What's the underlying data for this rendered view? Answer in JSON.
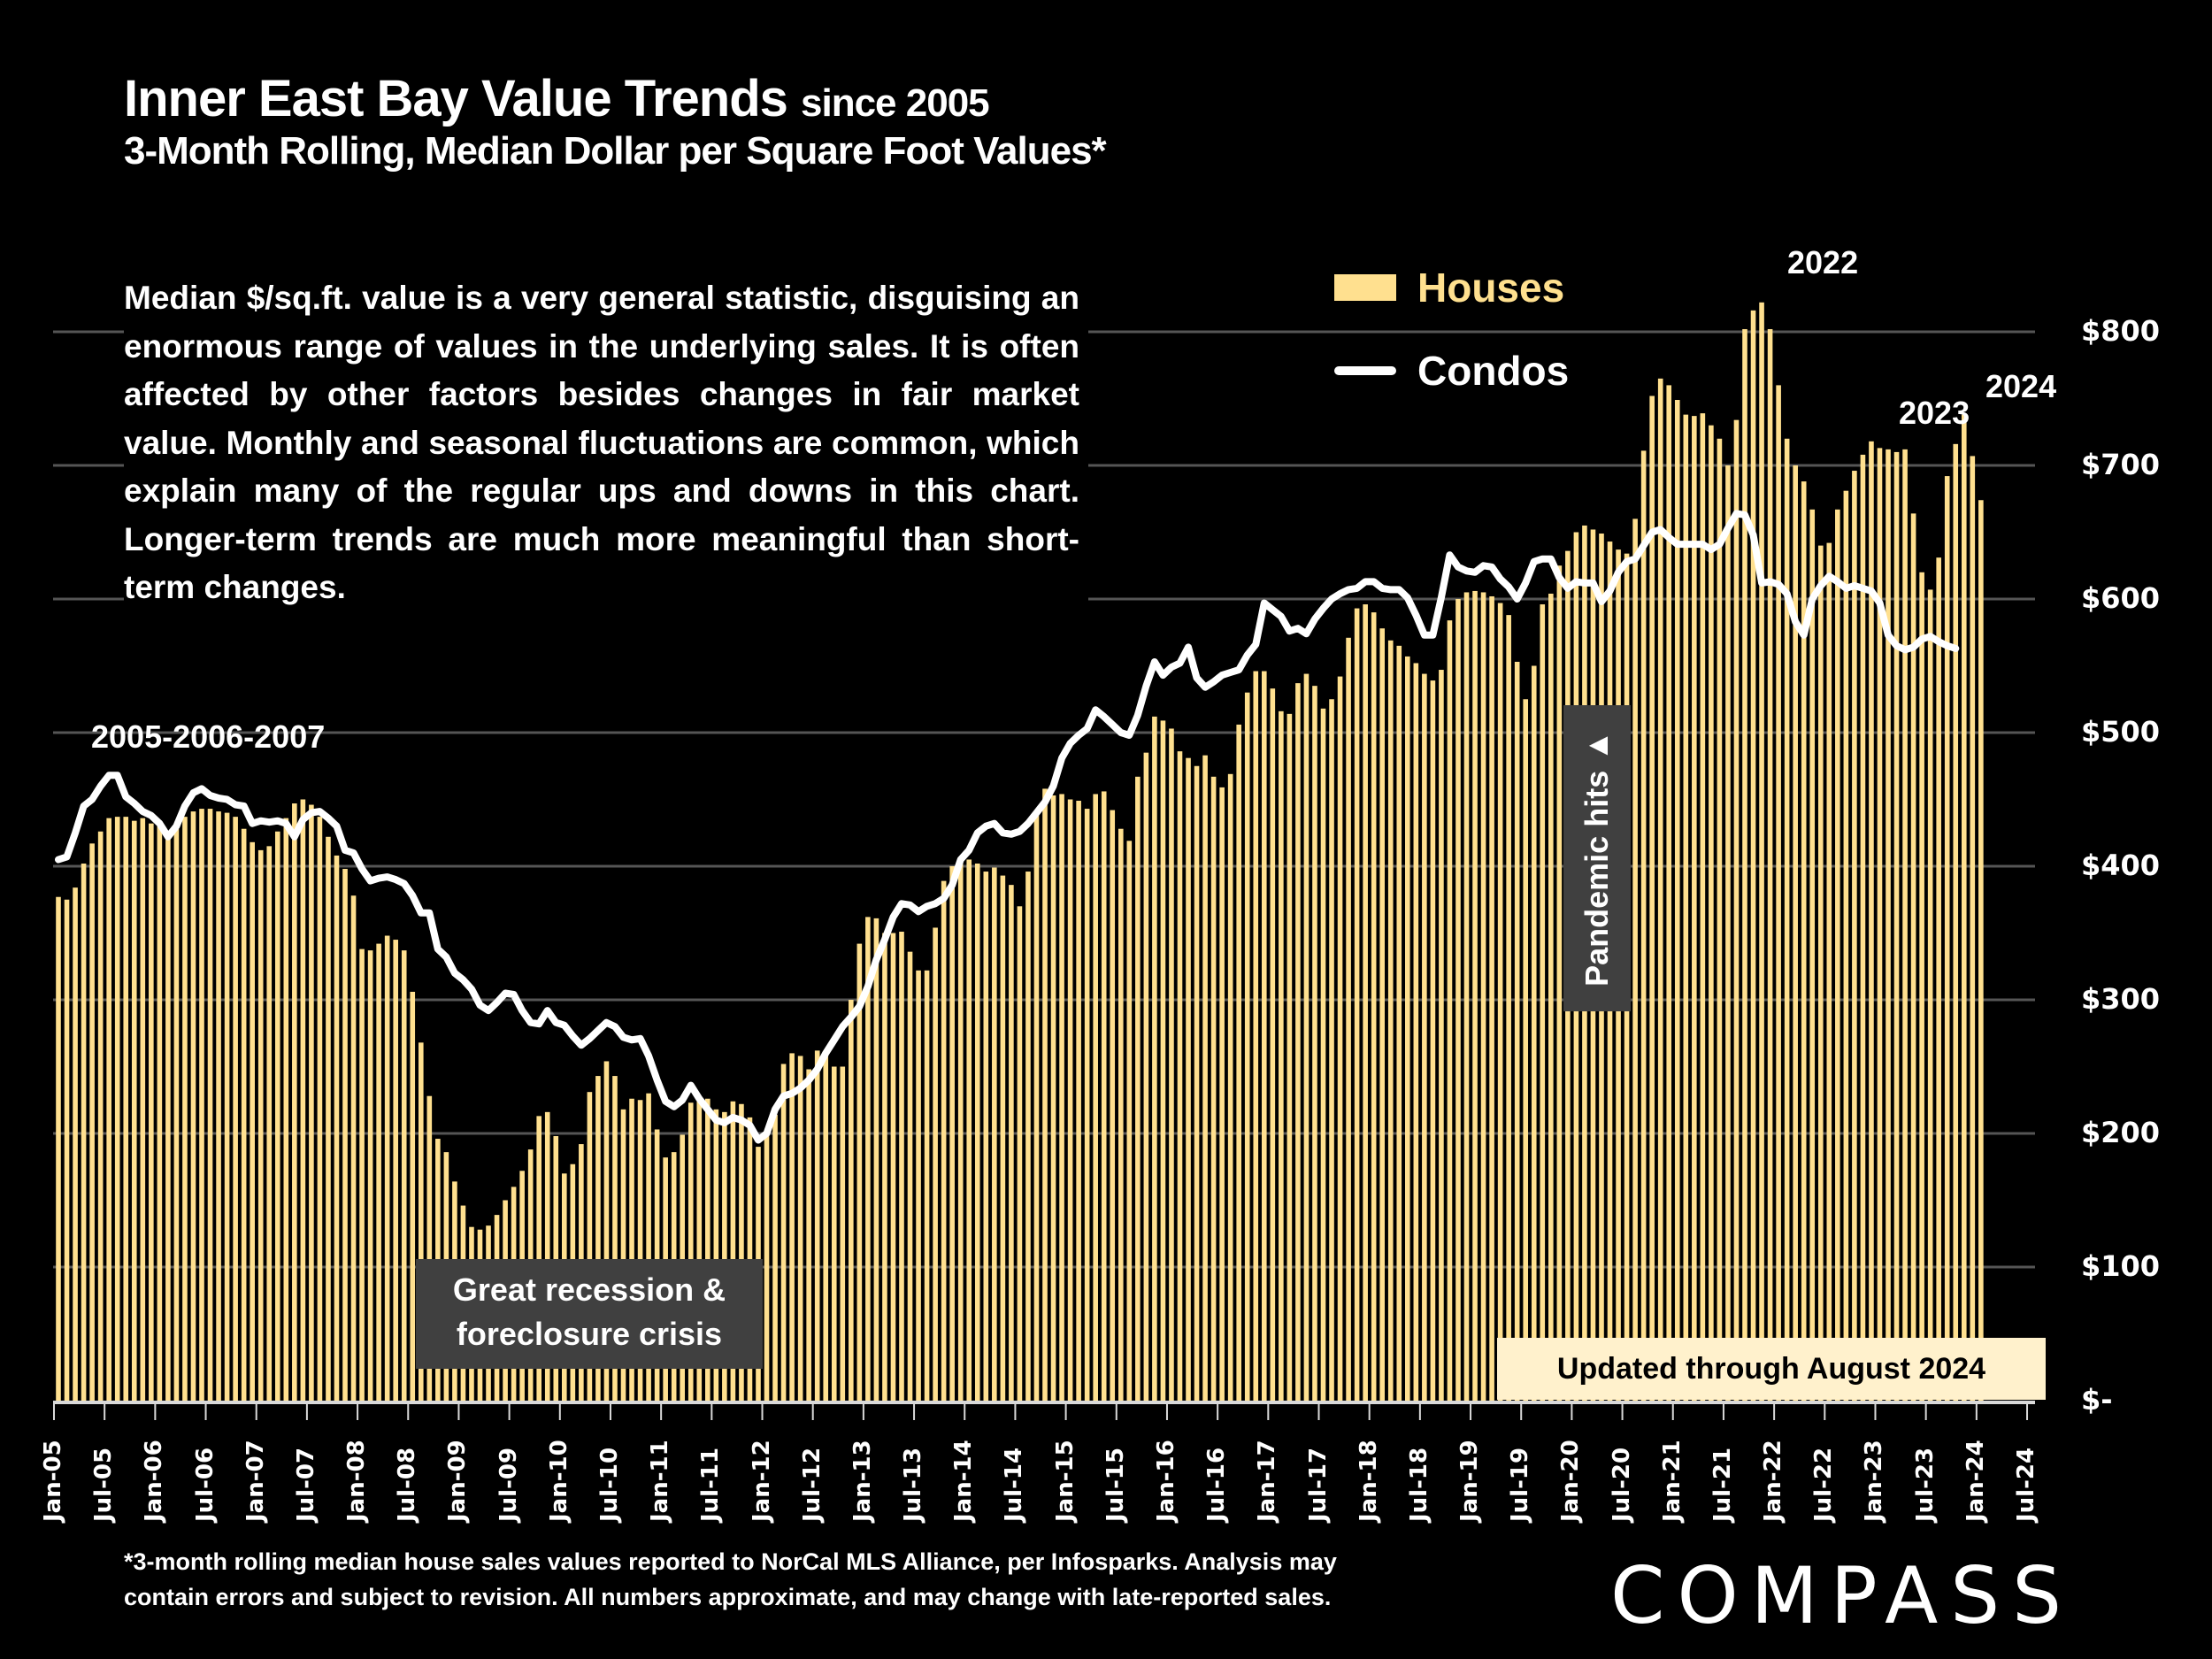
{
  "header": {
    "title": "Inner East Bay Value Trends",
    "title_suffix": "since 2005",
    "subtitle": "3-Month Rolling, Median Dollar per Square Foot Values*"
  },
  "note": "Median $/sq.ft. value is a very general statistic, disguising an enormous range of values in the underlying sales. It is often affected by other factors besides changes in fair market value. Monthly and seasonal fluctuations are common, which explain many of the regular ups and downs in this chart. Longer-term trends are much more meaningful than short-term changes.",
  "legend": {
    "houses": "Houses",
    "condos": "Condos"
  },
  "annotations": {
    "peak_2005_2007": "2005-2006-2007",
    "peak_2022": "2022",
    "peak_2023": "2023",
    "peak_2024": "2024",
    "recession": "Great recession & foreclosure crisis",
    "pandemic": "Pandemic hits ▲",
    "updated": "Updated through August 2024"
  },
  "footnote_line1": "*3-month rolling median house sales values reported to NorCal MLS Alliance, per Infosparks. Analysis may",
  "footnote_line2": "contain errors and subject to revision. All numbers approximate, and may change with late-reported sales.",
  "brand": "COMPASS",
  "colors": {
    "houses": "#FFE08F",
    "condos": "#FFFFFF",
    "background": "#000000",
    "gridline": "#555555",
    "annotation_box": "#404040",
    "updated_box": "#FFF1CC"
  },
  "chart_data": {
    "type": "bar",
    "title": "Inner East Bay Value Trends since 2005",
    "subtitle": "3-Month Rolling, Median Dollar per Square Foot Values*",
    "xlabel": "",
    "ylabel": "Median $/sq.ft.",
    "ylim": [
      0,
      800
    ],
    "yticks": [
      0,
      100,
      200,
      300,
      400,
      500,
      600,
      700,
      800
    ],
    "ytick_labels": [
      "$-",
      "$100",
      "$200",
      "$300",
      "$400",
      "$500",
      "$600",
      "$700",
      "$800"
    ],
    "grid": true,
    "legend_position": "top-right",
    "x_start": "Jan-05",
    "x_end": "Aug-24",
    "xtick_labels": [
      "Jan-05",
      "Jul-05",
      "Jan-06",
      "Jul-06",
      "Jan-07",
      "Jul-07",
      "Jan-08",
      "Jul-08",
      "Jan-09",
      "Jul-09",
      "Jan-10",
      "Jul-10",
      "Jan-11",
      "Jul-11",
      "Jan-12",
      "Jul-12",
      "Jan-13",
      "Jul-13",
      "Jan-14",
      "Jul-14",
      "Jan-15",
      "Jul-15",
      "Jan-16",
      "Jul-16",
      "Jan-17",
      "Jul-17",
      "Jan-18",
      "Jul-18",
      "Jan-19",
      "Jul-19",
      "Jan-20",
      "Jul-20",
      "Jan-21",
      "Jul-21",
      "Jan-22",
      "Jul-22",
      "Jan-23",
      "Jul-23",
      "Jan-24",
      "Jul-24"
    ],
    "series": [
      {
        "name": "Houses",
        "type": "bar",
        "values": [
          377,
          375,
          384,
          402,
          417,
          426,
          436,
          437,
          437,
          434,
          436,
          432,
          430,
          424,
          428,
          437,
          441,
          443,
          443,
          441,
          440,
          437,
          428,
          418,
          412,
          415,
          426,
          436,
          447,
          450,
          446,
          437,
          422,
          408,
          398,
          378,
          338,
          337,
          342,
          348,
          345,
          337,
          306,
          268,
          228,
          196,
          186,
          164,
          146,
          130,
          128,
          131,
          139,
          150,
          160,
          172,
          188,
          213,
          216,
          198,
          170,
          177,
          192,
          231,
          243,
          254,
          243,
          218,
          226,
          225,
          230,
          203,
          182,
          186,
          199,
          223,
          226,
          226,
          218,
          216,
          224,
          222,
          212,
          190,
          198,
          214,
          252,
          260,
          258,
          248,
          262,
          258,
          250,
          250,
          300,
          342,
          362,
          361,
          350,
          350,
          351,
          336,
          322,
          322,
          354,
          389,
          400,
          407,
          405,
          402,
          396,
          399,
          393,
          386,
          370,
          396,
          438,
          458,
          453,
          454,
          450,
          449,
          443,
          454,
          456,
          442,
          428,
          419,
          467,
          485,
          512,
          509,
          503,
          486,
          481,
          475,
          483,
          467,
          459,
          469,
          506,
          530,
          546,
          546,
          533,
          516,
          514,
          537,
          544,
          535,
          518,
          525,
          542,
          571,
          593,
          596,
          590,
          578,
          569,
          565,
          557,
          552,
          544,
          539,
          547,
          584,
          600,
          605,
          606,
          605,
          602,
          597,
          588,
          553,
          525,
          550,
          596,
          604,
          625,
          636,
          650,
          655,
          652,
          649,
          643,
          637,
          634,
          660,
          711,
          752,
          765,
          760,
          749,
          738,
          737,
          739,
          730,
          720,
          700,
          734,
          802,
          816,
          822,
          802,
          760,
          720,
          700,
          688,
          667,
          640,
          642,
          667,
          681,
          696,
          708,
          718,
          713,
          712,
          710,
          712,
          664,
          620,
          607,
          631,
          692,
          716,
          738,
          707,
          674
        ]
      },
      {
        "name": "Condos",
        "type": "line",
        "values": [
          405,
          407,
          425,
          445,
          450,
          460,
          468,
          468,
          452,
          447,
          441,
          438,
          432,
          422,
          430,
          445,
          455,
          458,
          453,
          451,
          450,
          446,
          445,
          432,
          434,
          433,
          434,
          432,
          422,
          435,
          440,
          441,
          436,
          430,
          412,
          410,
          398,
          389,
          391,
          392,
          390,
          387,
          378,
          365,
          365,
          338,
          332,
          320,
          315,
          308,
          296,
          292,
          298,
          305,
          304,
          292,
          283,
          282,
          292,
          283,
          281,
          273,
          266,
          271,
          277,
          283,
          280,
          272,
          270,
          271,
          258,
          240,
          224,
          220,
          225,
          236,
          226,
          218,
          210,
          208,
          212,
          210,
          206,
          195,
          200,
          218,
          228,
          230,
          234,
          240,
          248,
          260,
          270,
          280,
          287,
          295,
          310,
          330,
          345,
          362,
          372,
          371,
          366,
          370,
          372,
          376,
          386,
          405,
          412,
          425,
          430,
          432,
          425,
          424,
          426,
          432,
          440,
          448,
          460,
          481,
          492,
          498,
          503,
          517,
          512,
          506,
          500,
          498,
          513,
          535,
          553,
          543,
          549,
          552,
          564,
          541,
          534,
          538,
          543,
          545,
          547,
          558,
          566,
          597,
          592,
          587,
          576,
          578,
          574,
          585,
          593,
          600,
          604,
          607,
          608,
          613,
          613,
          608,
          607,
          607,
          601,
          588,
          573,
          573,
          601,
          633,
          624,
          621,
          620,
          625,
          624,
          615,
          609,
          600,
          612,
          628,
          630,
          630,
          616,
          608,
          613,
          612,
          612,
          598,
          606,
          620,
          628,
          630,
          640,
          650,
          652,
          646,
          641,
          641,
          641,
          641,
          637,
          641,
          653,
          664,
          663,
          648,
          612,
          613,
          611,
          604,
          583,
          573,
          600,
          610,
          617,
          613,
          608,
          610,
          608,
          606,
          597,
          573,
          565,
          562,
          564,
          570,
          572,
          568,
          565,
          563
        ]
      }
    ]
  }
}
